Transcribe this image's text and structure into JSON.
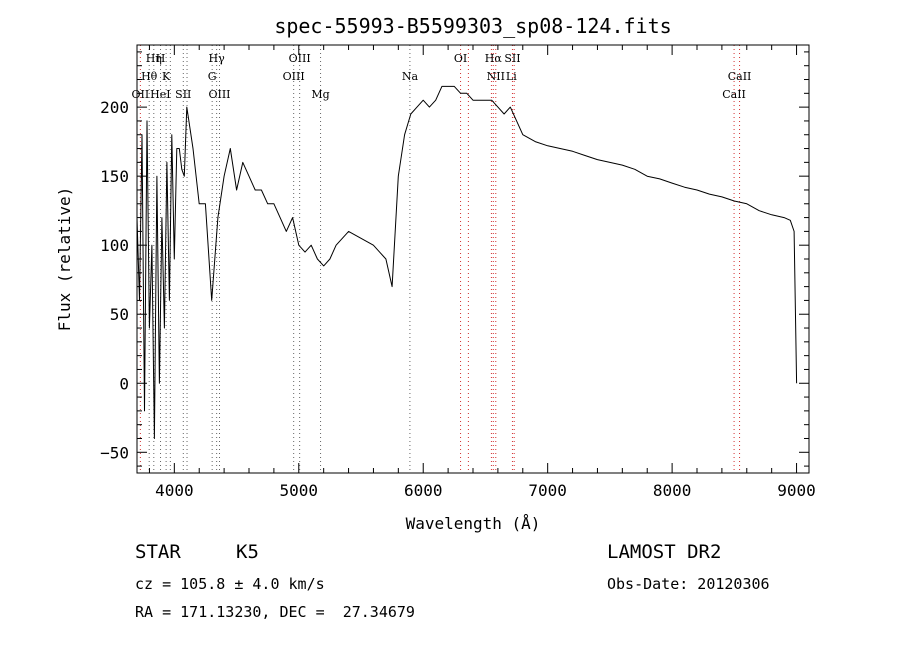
{
  "chart_data": {
    "type": "line",
    "title": "spec-55993-B5599303_sp08-124.fits",
    "xlabel": "Wavelength (Å)",
    "ylabel": "Flux (relative)",
    "xlim": [
      3700,
      9100
    ],
    "ylim": [
      -65,
      245
    ],
    "xticks": [
      4000,
      5000,
      6000,
      7000,
      8000,
      9000
    ],
    "yticks": [
      -50,
      0,
      50,
      100,
      150,
      200
    ],
    "grid": false,
    "series": [
      {
        "x": [
          3700,
          3720,
          3740,
          3760,
          3780,
          3800,
          3820,
          3840,
          3860,
          3880,
          3900,
          3920,
          3940,
          3960,
          3980,
          4000,
          4020,
          4040,
          4060,
          4080,
          4100,
          4150,
          4200,
          4250,
          4300,
          4350,
          4400,
          4450,
          4500,
          4550,
          4600,
          4650,
          4700,
          4750,
          4800,
          4850,
          4900,
          4950,
          5000,
          5050,
          5100,
          5150,
          5200,
          5250,
          5300,
          5400,
          5500,
          5600,
          5700,
          5750,
          5800,
          5850,
          5900,
          5950,
          6000,
          6050,
          6100,
          6150,
          6200,
          6250,
          6300,
          6350,
          6400,
          6450,
          6500,
          6550,
          6600,
          6650,
          6700,
          6750,
          6800,
          6900,
          7000,
          7100,
          7200,
          7300,
          7400,
          7500,
          7600,
          7700,
          7800,
          7900,
          8000,
          8100,
          8200,
          8300,
          8400,
          8500,
          8600,
          8700,
          8800,
          8900,
          8950,
          8980,
          9000
        ],
        "y": [
          120,
          60,
          180,
          -20,
          190,
          40,
          100,
          -40,
          150,
          0,
          120,
          40,
          160,
          60,
          180,
          90,
          170,
          170,
          155,
          150,
          200,
          170,
          130,
          130,
          60,
          120,
          150,
          170,
          140,
          160,
          150,
          140,
          140,
          130,
          130,
          120,
          110,
          120,
          100,
          95,
          100,
          90,
          85,
          90,
          100,
          110,
          105,
          100,
          90,
          70,
          150,
          180,
          195,
          200,
          205,
          200,
          205,
          215,
          215,
          215,
          210,
          210,
          205,
          205,
          205,
          205,
          200,
          195,
          200,
          190,
          180,
          175,
          172,
          170,
          168,
          165,
          162,
          160,
          158,
          155,
          150,
          148,
          145,
          142,
          140,
          137,
          135,
          132,
          130,
          125,
          122,
          120,
          118,
          110,
          0
        ]
      }
    ],
    "annotations": [
      {
        "text": "Hη",
        "x": 3835,
        "row": 1
      },
      {
        "text": "H",
        "x": 3889,
        "row": 1
      },
      {
        "text": "Hθ",
        "x": 3798,
        "row": 2
      },
      {
        "text": "K",
        "x": 3934,
        "row": 2
      },
      {
        "text": "OII",
        "x": 3727,
        "row": 3
      },
      {
        "text": "HeI",
        "x": 3888,
        "row": 3
      },
      {
        "text": "SII",
        "x": 4072,
        "row": 3
      },
      {
        "text": "Hγ",
        "x": 4340,
        "row": 1
      },
      {
        "text": "G",
        "x": 4304,
        "row": 2
      },
      {
        "text": "OIII",
        "x": 4363,
        "row": 3
      },
      {
        "text": "OIII",
        "x": 5007,
        "row": 1
      },
      {
        "text": "OIII",
        "x": 4959,
        "row": 2
      },
      {
        "text": "Mg",
        "x": 5175,
        "row": 3
      },
      {
        "text": "Na",
        "x": 5893,
        "row": 2
      },
      {
        "text": "OI",
        "x": 6300,
        "row": 1
      },
      {
        "text": "Hα",
        "x": 6563,
        "row": 1
      },
      {
        "text": "SII",
        "x": 6717,
        "row": 1
      },
      {
        "text": "NII",
        "x": 6583,
        "row": 2
      },
      {
        "text": "Li",
        "x": 6708,
        "row": 2
      },
      {
        "text": "CaII",
        "x": 8542,
        "row": 2
      },
      {
        "text": "CaII",
        "x": 8498,
        "row": 3
      }
    ],
    "line_markers": {
      "red": [
        3727,
        6300,
        6363,
        6548,
        6563,
        6583,
        6717,
        6731,
        8498,
        8542
      ],
      "gray": [
        3798,
        3835,
        3889,
        3934,
        3968,
        4072,
        4102,
        4304,
        4340,
        4363,
        4959,
        5007,
        5175,
        5893
      ]
    }
  },
  "info": {
    "class_label": "STAR",
    "subclass": "K5",
    "survey": "LAMOST DR2",
    "cz": "cz = 105.8 ± 4.0 km/s",
    "obs_date": "Obs-Date: 20120306",
    "coords": "RA = 171.13230, DEC =  27.34679"
  }
}
